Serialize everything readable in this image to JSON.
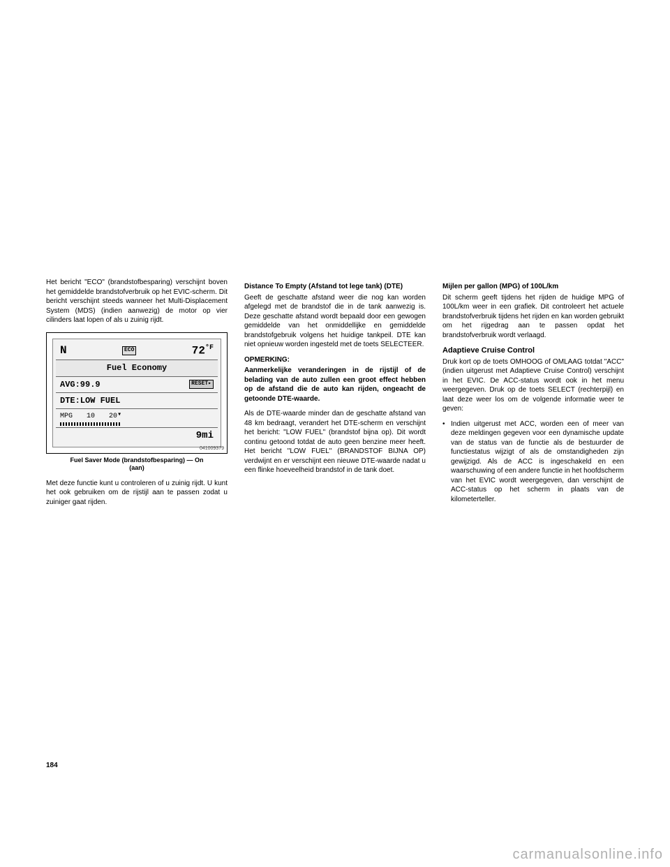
{
  "col1": {
    "intro": "Het bericht \"ECO\" (brandstofbesparing) verschijnt boven het gemiddelde brandstofverbruik op het EVIC-scherm. Dit bericht verschijnt steeds wanneer het Multi-Displacement System (MDS) (indien aanwezig) de motor op vier cilinders laat lopen of als u zuinig rijdt.",
    "lcd": {
      "direction": "N",
      "eco_badge": "ECO",
      "temp": "72",
      "temp_unit": "°F",
      "title": "Fuel Economy",
      "avg": "AVG:99.9",
      "reset": "RESET▸",
      "dte": "DTE:LOW FUEL",
      "mpg_label": "MPG",
      "scale1": "10",
      "scale2": "20",
      "odo": "9mi"
    },
    "fig_no": "041009379",
    "caption_line1": "Fuel Saver Mode (brandstofbesparing) — On",
    "caption_line2": "(aan)",
    "para2": "Met deze functie kunt u controleren of u zuinig rijdt. U kunt het ook gebruiken om de rijstijl aan te passen zodat u zuiniger gaat rijden."
  },
  "col2": {
    "h1": "Distance To Empty (Afstand tot lege tank) (DTE)",
    "p1": "Geeft de geschatte afstand weer die nog kan worden afgelegd met de brandstof die in de tank aanwezig is. Deze geschatte afstand wordt bepaald door een gewogen gemiddelde van het onmiddellijke en gemiddelde brandstofgebruik volgens het huidige tankpeil. DTE kan niet opnieuw worden ingesteld met de toets SELECTEER.",
    "h2": "OPMERKING:",
    "p2": "Aanmerkelijke veranderingen in de rijstijl of de belading van de auto zullen een groot effect hebben op de afstand die de auto kan rijden, ongeacht de getoonde DTE-waarde.",
    "p3": "Als de DTE-waarde minder dan de geschatte afstand van 48 km bedraagt, verandert het DTE-scherm en verschijnt het bericht: \"LOW FUEL\" (brandstof bijna op). Dit wordt continu getoond totdat de auto geen benzine meer heeft. Het bericht \"LOW FUEL\" (BRANDSTOF BIJNA OP) verdwijnt en er verschijnt een nieuwe DTE-waarde nadat u een flinke hoeveelheid brandstof in de tank doet."
  },
  "col3": {
    "h1": "Mijlen per gallon (MPG) of 100L/km",
    "p1": "Dit scherm geeft tijdens het rijden de huidige MPG of 100L/km weer in een grafiek. Dit controleert het actuele brandstofverbruik tijdens het rijden en kan worden gebruikt om het rijgedrag aan te passen opdat het brandstofverbruik wordt verlaagd.",
    "h2": "Adaptieve Cruise Control",
    "p2": "Druk kort op de toets OMHOOG of OMLAAG totdat \"ACC\" (indien uitgerust met Adaptieve Cruise Control) verschijnt in het EVIC. De ACC-status wordt ook in het menu weergegeven. Druk op de toets SELECT (rechterpijl) en laat deze weer los om de volgende informatie weer te geven:",
    "bullet": "Indien uitgerust met ACC, worden een of meer van deze meldingen gegeven voor een dynamische update van de status van de functie als de bestuurder de functiestatus wijzigt of als de omstandigheden zijn gewijzigd. Als de ACC is ingeschakeld en een waarschuwing of een andere functie in het hoofdscherm van het EVIC wordt weergegeven, dan verschijnt de ACC-status op het scherm in plaats van de kilometerteller."
  },
  "page_number": "184",
  "watermark": "carmanualsonline.info"
}
